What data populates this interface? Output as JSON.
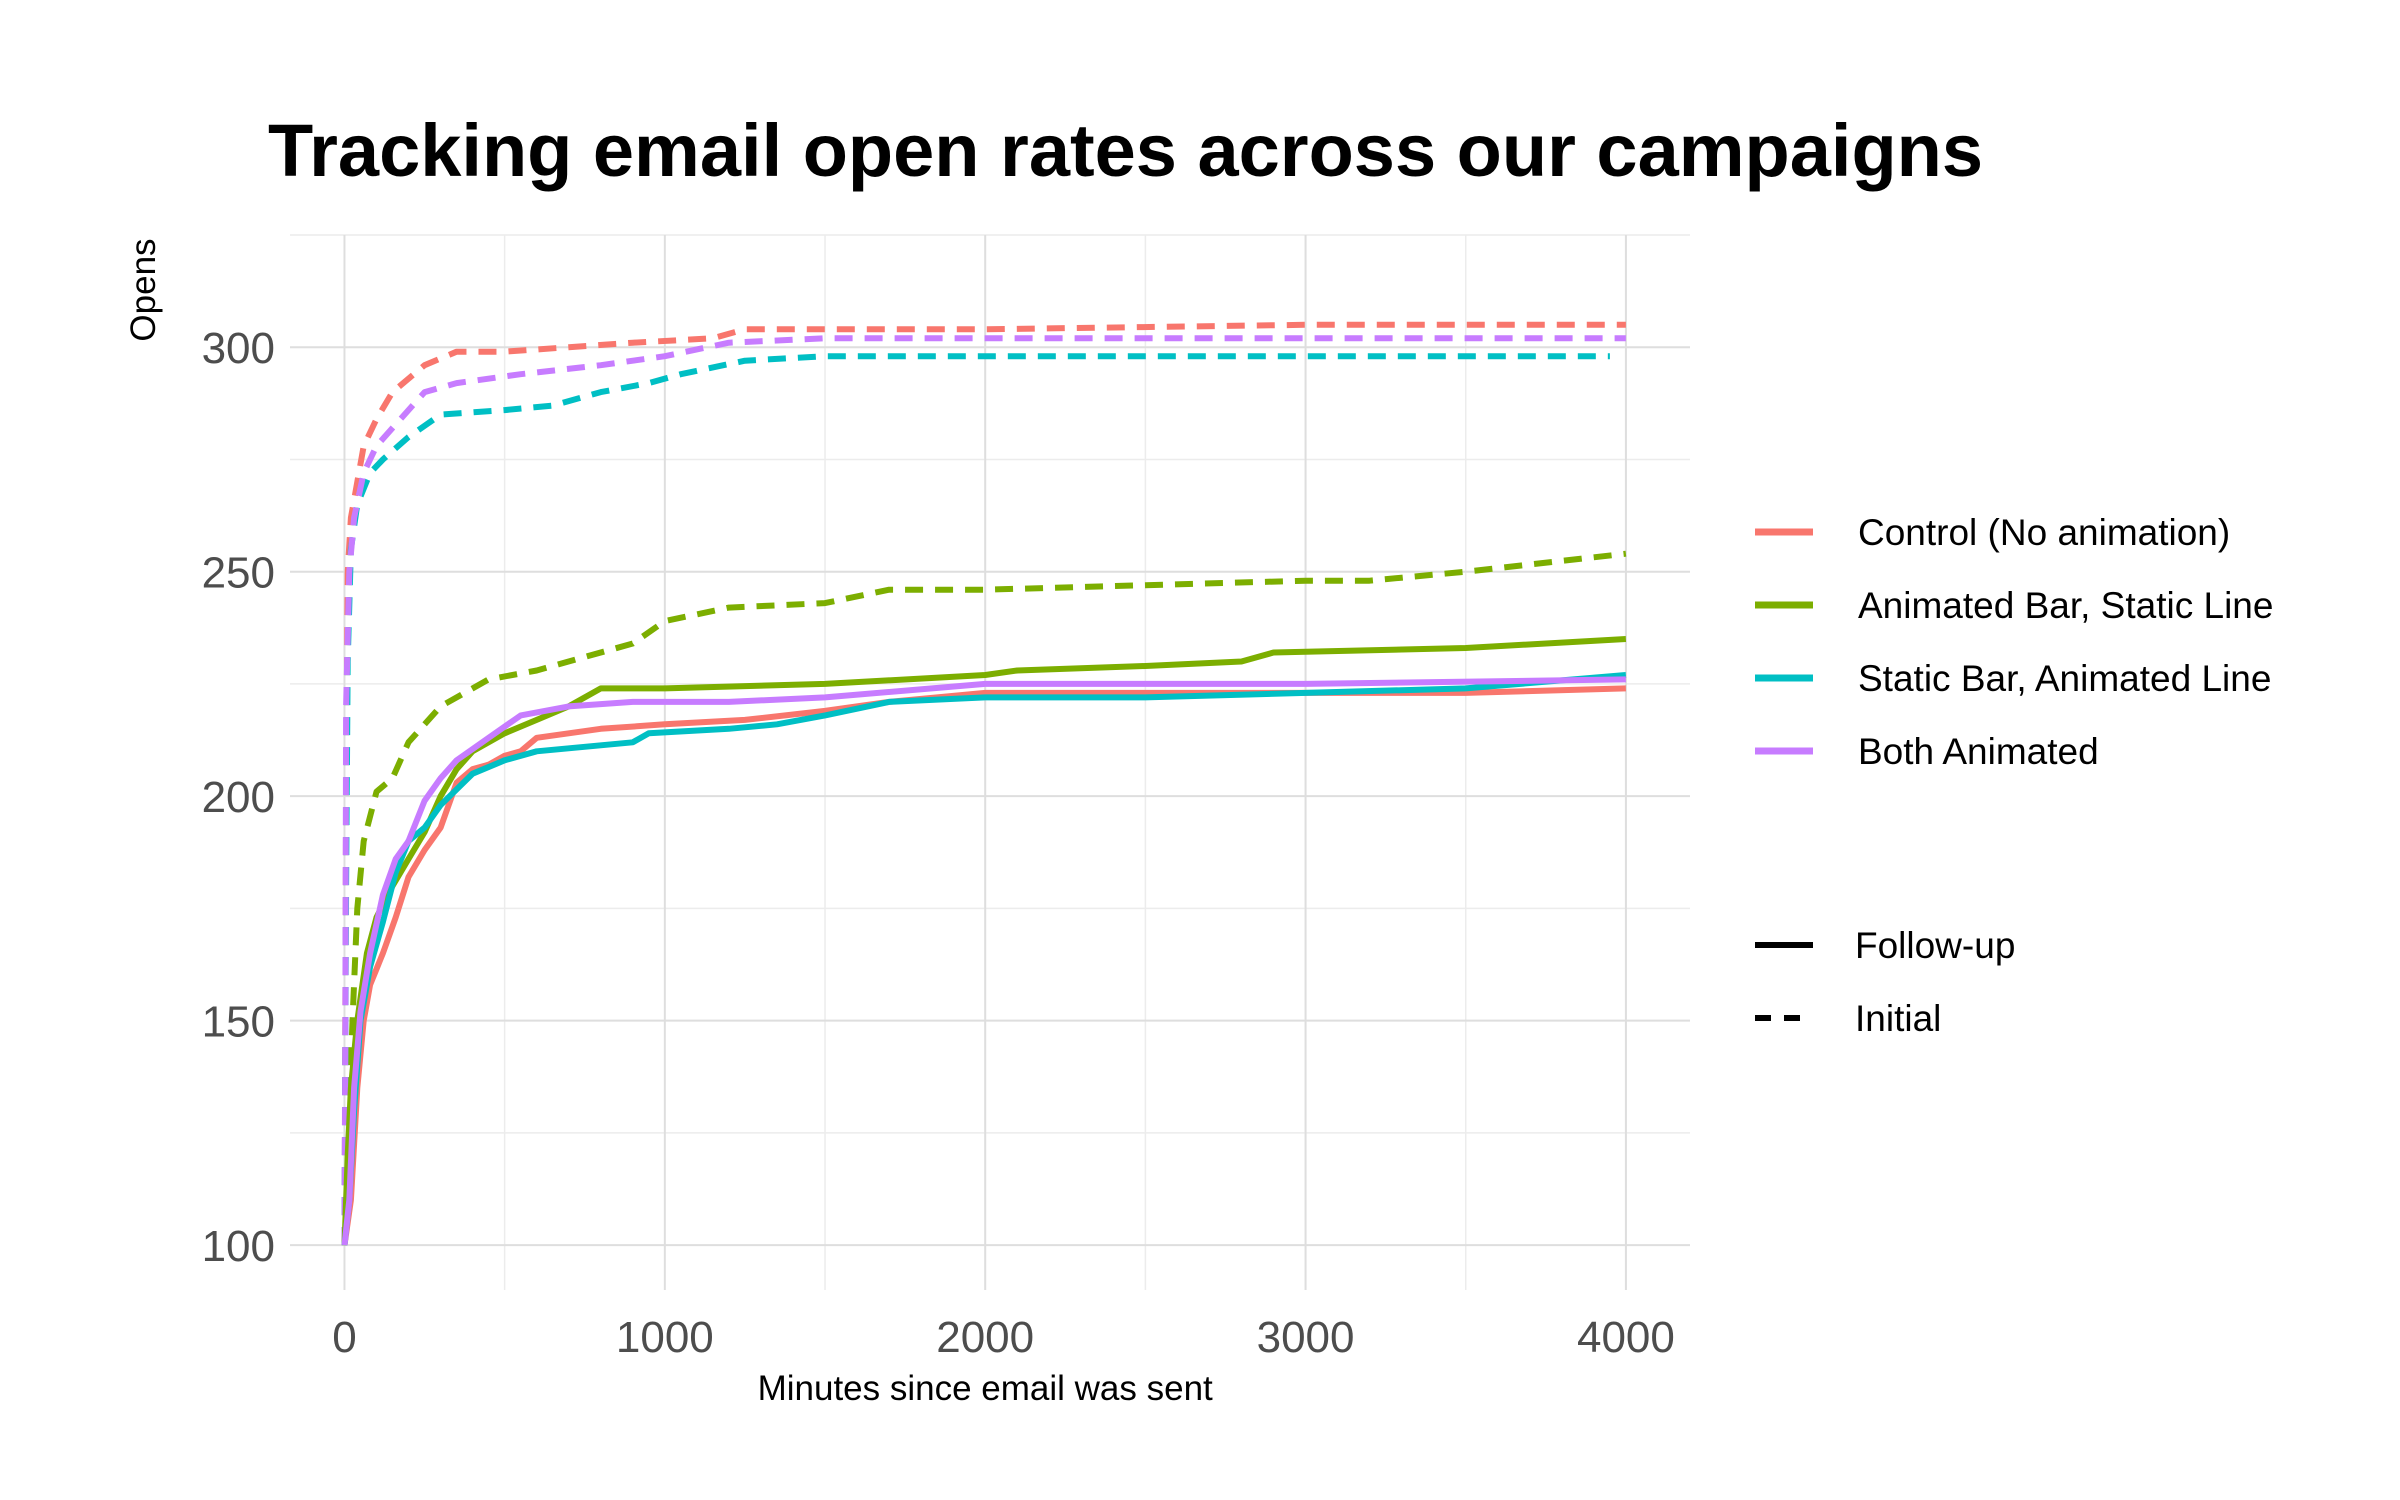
{
  "chart_data": {
    "type": "line",
    "title": "Tracking email open rates across our campaigns",
    "xlabel": "Minutes since email was sent",
    "ylabel": "Opens",
    "xlim": [
      -170,
      4200
    ],
    "ylim": [
      90,
      325
    ],
    "x_ticks": [
      0,
      1000,
      2000,
      3000,
      4000
    ],
    "y_ticks": [
      100,
      150,
      200,
      250,
      300
    ],
    "grid": true,
    "legend_position": "right",
    "groups": [
      {
        "name": "Control (No animation)",
        "color": "#F8766D"
      },
      {
        "name": "Animated Bar, Static Line",
        "color": "#7CAE00"
      },
      {
        "name": "Static Bar, Animated Line",
        "color": "#00BFC4"
      },
      {
        "name": "Both Animated",
        "color": "#C77CFF"
      }
    ],
    "linetypes": [
      {
        "name": "Follow-up",
        "dash": "solid"
      },
      {
        "name": "Initial",
        "dash": "dashed"
      }
    ],
    "series": [
      {
        "group": "Control (No animation)",
        "linetype": "Initial",
        "points": [
          [
            0,
            100
          ],
          [
            5,
            200
          ],
          [
            10,
            250
          ],
          [
            20,
            262
          ],
          [
            40,
            270
          ],
          [
            60,
            278
          ],
          [
            100,
            284
          ],
          [
            150,
            290
          ],
          [
            250,
            296
          ],
          [
            350,
            299
          ],
          [
            500,
            299
          ],
          [
            700,
            300
          ],
          [
            900,
            301
          ],
          [
            1150,
            302
          ],
          [
            1250,
            304
          ],
          [
            1500,
            304
          ],
          [
            2000,
            304
          ],
          [
            3000,
            305
          ],
          [
            4000,
            305
          ]
        ]
      },
      {
        "group": "Animated Bar, Static Line",
        "linetype": "Initial",
        "points": [
          [
            0,
            100
          ],
          [
            10,
            120
          ],
          [
            25,
            150
          ],
          [
            40,
            175
          ],
          [
            60,
            190
          ],
          [
            100,
            201
          ],
          [
            150,
            204
          ],
          [
            200,
            212
          ],
          [
            300,
            220
          ],
          [
            450,
            226
          ],
          [
            600,
            228
          ],
          [
            750,
            231
          ],
          [
            900,
            234
          ],
          [
            1000,
            239
          ],
          [
            1200,
            242
          ],
          [
            1500,
            243
          ],
          [
            1700,
            246
          ],
          [
            2000,
            246
          ],
          [
            2500,
            247
          ],
          [
            3000,
            248
          ],
          [
            3200,
            248
          ],
          [
            3500,
            250
          ],
          [
            4000,
            254
          ]
        ]
      },
      {
        "group": "Static Bar, Animated Line",
        "linetype": "Initial",
        "points": [
          [
            0,
            100
          ],
          [
            5,
            180
          ],
          [
            10,
            230
          ],
          [
            20,
            255
          ],
          [
            40,
            265
          ],
          [
            80,
            272
          ],
          [
            120,
            275
          ],
          [
            200,
            280
          ],
          [
            300,
            285
          ],
          [
            500,
            286
          ],
          [
            650,
            287
          ],
          [
            800,
            290
          ],
          [
            950,
            292
          ],
          [
            1050,
            294
          ],
          [
            1250,
            297
          ],
          [
            1500,
            298
          ],
          [
            2000,
            298
          ],
          [
            3000,
            298
          ],
          [
            3950,
            298
          ]
        ]
      },
      {
        "group": "Both Animated",
        "linetype": "Initial",
        "points": [
          [
            0,
            100
          ],
          [
            3,
            150
          ],
          [
            5,
            220
          ],
          [
            15,
            250
          ],
          [
            30,
            262
          ],
          [
            60,
            272
          ],
          [
            100,
            278
          ],
          [
            150,
            282
          ],
          [
            250,
            290
          ],
          [
            350,
            292
          ],
          [
            550,
            294
          ],
          [
            800,
            296
          ],
          [
            1000,
            298
          ],
          [
            1200,
            301
          ],
          [
            1500,
            302
          ],
          [
            2000,
            302
          ],
          [
            3000,
            302
          ],
          [
            4000,
            302
          ]
        ]
      },
      {
        "group": "Control (No animation)",
        "linetype": "Follow-up",
        "points": [
          [
            0,
            100
          ],
          [
            20,
            110
          ],
          [
            40,
            135
          ],
          [
            60,
            150
          ],
          [
            80,
            158
          ],
          [
            120,
            165
          ],
          [
            160,
            173
          ],
          [
            200,
            182
          ],
          [
            250,
            188
          ],
          [
            300,
            193
          ],
          [
            350,
            203
          ],
          [
            400,
            206
          ],
          [
            450,
            207
          ],
          [
            500,
            209
          ],
          [
            550,
            210
          ],
          [
            600,
            213
          ],
          [
            800,
            215
          ],
          [
            1000,
            216
          ],
          [
            1250,
            217
          ],
          [
            1500,
            219
          ],
          [
            1700,
            221
          ],
          [
            2000,
            223
          ],
          [
            2500,
            223
          ],
          [
            3000,
            223
          ],
          [
            3500,
            223
          ],
          [
            4000,
            224
          ]
        ]
      },
      {
        "group": "Animated Bar, Static Line",
        "linetype": "Follow-up",
        "points": [
          [
            0,
            100
          ],
          [
            10,
            120
          ],
          [
            20,
            135
          ],
          [
            40,
            150
          ],
          [
            70,
            165
          ],
          [
            100,
            173
          ],
          [
            150,
            180
          ],
          [
            200,
            186
          ],
          [
            250,
            192
          ],
          [
            300,
            200
          ],
          [
            350,
            206
          ],
          [
            400,
            210
          ],
          [
            500,
            214
          ],
          [
            600,
            217
          ],
          [
            700,
            220
          ],
          [
            800,
            224
          ],
          [
            1000,
            224
          ],
          [
            1500,
            225
          ],
          [
            2000,
            227
          ],
          [
            2100,
            228
          ],
          [
            2500,
            229
          ],
          [
            2800,
            230
          ],
          [
            2900,
            232
          ],
          [
            3500,
            233
          ],
          [
            4000,
            235
          ]
        ]
      },
      {
        "group": "Static Bar, Animated Line",
        "linetype": "Follow-up",
        "points": [
          [
            0,
            100
          ],
          [
            15,
            110
          ],
          [
            30,
            130
          ],
          [
            50,
            150
          ],
          [
            80,
            162
          ],
          [
            120,
            172
          ],
          [
            160,
            183
          ],
          [
            200,
            190
          ],
          [
            250,
            193
          ],
          [
            300,
            198
          ],
          [
            400,
            205
          ],
          [
            500,
            208
          ],
          [
            600,
            210
          ],
          [
            750,
            211
          ],
          [
            900,
            212
          ],
          [
            950,
            214
          ],
          [
            1200,
            215
          ],
          [
            1350,
            216
          ],
          [
            1500,
            218
          ],
          [
            1700,
            221
          ],
          [
            2000,
            222
          ],
          [
            2500,
            222
          ],
          [
            3000,
            223
          ],
          [
            3500,
            224
          ],
          [
            4000,
            227
          ]
        ]
      },
      {
        "group": "Both Animated",
        "linetype": "Follow-up",
        "points": [
          [
            0,
            100
          ],
          [
            15,
            110
          ],
          [
            30,
            135
          ],
          [
            50,
            152
          ],
          [
            80,
            165
          ],
          [
            120,
            178
          ],
          [
            160,
            186
          ],
          [
            200,
            190
          ],
          [
            250,
            199
          ],
          [
            300,
            204
          ],
          [
            350,
            208
          ],
          [
            450,
            213
          ],
          [
            550,
            218
          ],
          [
            700,
            220
          ],
          [
            900,
            221
          ],
          [
            1200,
            221
          ],
          [
            1500,
            222
          ],
          [
            2000,
            225
          ],
          [
            2500,
            225
          ],
          [
            3000,
            225
          ],
          [
            4000,
            226
          ]
        ]
      }
    ]
  }
}
